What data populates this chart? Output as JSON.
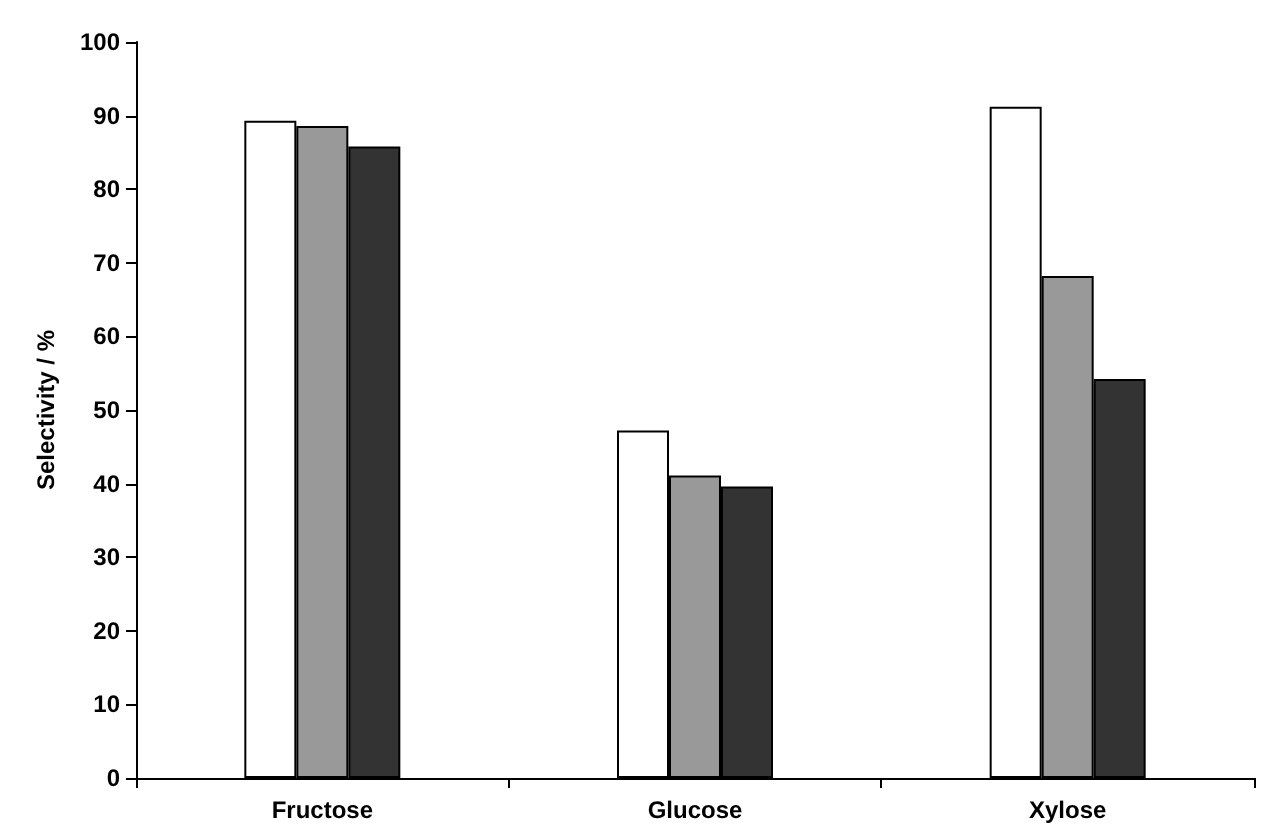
{
  "chart_data": {
    "type": "bar",
    "ylabel": "Selectivity / %",
    "categories": [
      "Fructose",
      "Glucose",
      "Xylose"
    ],
    "series": [
      {
        "color": "#ffffff",
        "values": [
          89.3,
          47.2,
          91.2
        ]
      },
      {
        "color": "#999999",
        "values": [
          88.6,
          41.1,
          68.2
        ]
      },
      {
        "color": "#333333",
        "values": [
          85.8,
          39.6,
          54.2
        ]
      }
    ],
    "ylim": [
      0,
      100
    ],
    "yticks": [
      0,
      10,
      20,
      30,
      40,
      50,
      60,
      70,
      80,
      90,
      100
    ],
    "grid": false
  }
}
